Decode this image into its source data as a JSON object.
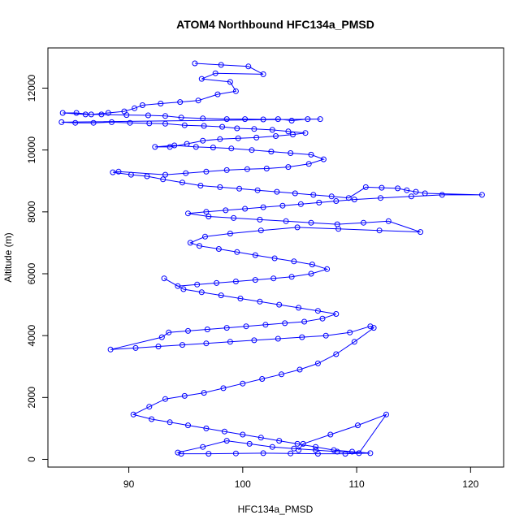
{
  "chart_data": {
    "type": "scatter",
    "title": "ATOM4 Northbound HFC134a_PMSD",
    "xlabel": "HFC134a_PMSD",
    "ylabel": "Altitude (m)",
    "xlim": [
      82.9,
      122.9
    ],
    "ylim": [
      -250,
      13300
    ],
    "x_ticks": [
      90,
      100,
      110,
      120
    ],
    "y_ticks": [
      0,
      2000,
      4000,
      6000,
      8000,
      10000,
      12000
    ],
    "grid": false,
    "legend": "none",
    "series": [
      {
        "connected": true,
        "marker": "open-circle",
        "points": [
          [
            95.8,
            12800
          ],
          [
            98.1,
            12750
          ],
          [
            100.5,
            12700
          ],
          [
            101.8,
            12450
          ],
          [
            97.6,
            12480
          ],
          [
            96.4,
            12300
          ],
          [
            98.9,
            12200
          ],
          [
            99.4,
            11900
          ],
          [
            97.8,
            11800
          ],
          [
            96.1,
            11600
          ],
          [
            94.5,
            11550
          ],
          [
            92.8,
            11500
          ],
          [
            91.2,
            11450
          ],
          [
            90.5,
            11350
          ],
          [
            89.6,
            11250
          ],
          [
            88.2,
            11200
          ],
          [
            86.7,
            11150
          ],
          [
            85.4,
            11200
          ],
          [
            84.2,
            11200
          ],
          [
            86.2,
            11150
          ],
          [
            87.6,
            11150
          ],
          [
            89.8,
            11130
          ],
          [
            91.7,
            11120
          ],
          [
            93.2,
            11100
          ],
          [
            94.6,
            11050
          ],
          [
            96.5,
            11020
          ],
          [
            98.6,
            11000
          ],
          [
            100.2,
            11000
          ],
          [
            101.8,
            10990
          ],
          [
            103.1,
            11000
          ],
          [
            104.3,
            10950
          ],
          [
            105.7,
            11000
          ],
          [
            106.8,
            11000
          ],
          [
            84.1,
            10900
          ],
          [
            85.3,
            10880
          ],
          [
            86.9,
            10880
          ],
          [
            88.5,
            10900
          ],
          [
            90.1,
            10880
          ],
          [
            91.8,
            10860
          ],
          [
            93.2,
            10850
          ],
          [
            94.9,
            10800
          ],
          [
            96.6,
            10780
          ],
          [
            98.2,
            10750
          ],
          [
            99.5,
            10700
          ],
          [
            101.0,
            10680
          ],
          [
            102.6,
            10650
          ],
          [
            104.0,
            10600
          ],
          [
            105.5,
            10550
          ],
          [
            104.4,
            10500
          ],
          [
            102.9,
            10450
          ],
          [
            101.2,
            10400
          ],
          [
            99.6,
            10380
          ],
          [
            98.0,
            10350
          ],
          [
            96.5,
            10300
          ],
          [
            95.1,
            10200
          ],
          [
            93.6,
            10100
          ],
          [
            92.3,
            10100
          ],
          [
            94.0,
            10150
          ],
          [
            95.9,
            10100
          ],
          [
            97.4,
            10080
          ],
          [
            99.0,
            10050
          ],
          [
            100.8,
            10000
          ],
          [
            102.5,
            9950
          ],
          [
            104.2,
            9900
          ],
          [
            106.0,
            9850
          ],
          [
            107.1,
            9700
          ],
          [
            105.8,
            9550
          ],
          [
            104.0,
            9450
          ],
          [
            102.1,
            9400
          ],
          [
            100.4,
            9380
          ],
          [
            98.6,
            9350
          ],
          [
            96.8,
            9300
          ],
          [
            95.0,
            9250
          ],
          [
            93.2,
            9200
          ],
          [
            89.1,
            9300
          ],
          [
            88.6,
            9280
          ],
          [
            90.2,
            9200
          ],
          [
            91.6,
            9150
          ],
          [
            93.0,
            9050
          ],
          [
            94.7,
            8950
          ],
          [
            96.3,
            8850
          ],
          [
            98.0,
            8800
          ],
          [
            99.7,
            8750
          ],
          [
            101.3,
            8700
          ],
          [
            103.0,
            8650
          ],
          [
            104.6,
            8600
          ],
          [
            106.2,
            8550
          ],
          [
            107.8,
            8500
          ],
          [
            109.3,
            8450
          ],
          [
            110.8,
            8800
          ],
          [
            112.2,
            8780
          ],
          [
            113.6,
            8760
          ],
          [
            114.4,
            8700
          ],
          [
            115.2,
            8650
          ],
          [
            116.0,
            8600
          ],
          [
            121.0,
            8550
          ],
          [
            117.5,
            8550
          ],
          [
            114.8,
            8500
          ],
          [
            112.1,
            8450
          ],
          [
            109.8,
            8400
          ],
          [
            108.2,
            8350
          ],
          [
            106.7,
            8300
          ],
          [
            105.1,
            8250
          ],
          [
            103.5,
            8200
          ],
          [
            101.8,
            8150
          ],
          [
            100.2,
            8100
          ],
          [
            98.5,
            8050
          ],
          [
            96.8,
            8000
          ],
          [
            95.2,
            7950
          ],
          [
            97.0,
            7850
          ],
          [
            99.2,
            7800
          ],
          [
            101.5,
            7750
          ],
          [
            103.8,
            7700
          ],
          [
            106.0,
            7650
          ],
          [
            108.3,
            7600
          ],
          [
            110.6,
            7650
          ],
          [
            112.8,
            7700
          ],
          [
            115.6,
            7350
          ],
          [
            112.0,
            7400
          ],
          [
            108.4,
            7450
          ],
          [
            104.8,
            7500
          ],
          [
            101.6,
            7400
          ],
          [
            98.9,
            7300
          ],
          [
            96.7,
            7200
          ],
          [
            95.4,
            7000
          ],
          [
            96.2,
            6900
          ],
          [
            97.9,
            6800
          ],
          [
            99.5,
            6700
          ],
          [
            101.1,
            6600
          ],
          [
            102.8,
            6500
          ],
          [
            104.5,
            6400
          ],
          [
            106.1,
            6300
          ],
          [
            107.4,
            6150
          ],
          [
            106.0,
            6000
          ],
          [
            104.3,
            5900
          ],
          [
            102.7,
            5850
          ],
          [
            101.1,
            5800
          ],
          [
            99.4,
            5750
          ],
          [
            97.7,
            5700
          ],
          [
            96.0,
            5650
          ],
          [
            94.3,
            5600
          ],
          [
            93.1,
            5850
          ],
          [
            94.8,
            5500
          ],
          [
            96.4,
            5400
          ],
          [
            98.1,
            5300
          ],
          [
            99.8,
            5200
          ],
          [
            101.5,
            5100
          ],
          [
            103.2,
            5000
          ],
          [
            104.9,
            4900
          ],
          [
            106.6,
            4800
          ],
          [
            108.2,
            4700
          ],
          [
            107.0,
            4550
          ],
          [
            105.4,
            4450
          ],
          [
            103.7,
            4400
          ],
          [
            102.0,
            4350
          ],
          [
            100.3,
            4300
          ],
          [
            98.6,
            4250
          ],
          [
            96.9,
            4200
          ],
          [
            95.2,
            4150
          ],
          [
            93.5,
            4100
          ],
          [
            92.9,
            3950
          ],
          [
            88.4,
            3550
          ],
          [
            90.6,
            3600
          ],
          [
            92.6,
            3650
          ],
          [
            94.7,
            3700
          ],
          [
            96.8,
            3750
          ],
          [
            98.9,
            3800
          ],
          [
            101.0,
            3850
          ],
          [
            103.1,
            3900
          ],
          [
            105.2,
            3950
          ],
          [
            107.3,
            4000
          ],
          [
            109.4,
            4100
          ],
          [
            111.2,
            4300
          ],
          [
            111.5,
            4250
          ],
          [
            109.8,
            3800
          ],
          [
            108.2,
            3400
          ],
          [
            106.6,
            3100
          ],
          [
            105.0,
            2900
          ],
          [
            103.4,
            2750
          ],
          [
            101.7,
            2600
          ],
          [
            100.0,
            2450
          ],
          [
            98.3,
            2300
          ],
          [
            96.6,
            2150
          ],
          [
            94.9,
            2050
          ],
          [
            93.2,
            1950
          ],
          [
            91.8,
            1700
          ],
          [
            90.4,
            1450
          ],
          [
            92.0,
            1300
          ],
          [
            93.6,
            1200
          ],
          [
            95.2,
            1100
          ],
          [
            96.8,
            1000
          ],
          [
            98.4,
            900
          ],
          [
            100.0,
            800
          ],
          [
            101.6,
            700
          ],
          [
            103.2,
            600
          ],
          [
            104.8,
            500
          ],
          [
            106.4,
            400
          ],
          [
            108.0,
            300
          ],
          [
            109.6,
            250
          ],
          [
            111.2,
            200
          ],
          [
            109.0,
            180
          ],
          [
            106.6,
            180
          ],
          [
            104.2,
            190
          ],
          [
            101.8,
            200
          ],
          [
            99.4,
            190
          ],
          [
            97.0,
            180
          ],
          [
            94.6,
            180
          ],
          [
            94.3,
            220
          ],
          [
            96.5,
            400
          ],
          [
            98.6,
            600
          ],
          [
            100.6,
            500
          ],
          [
            102.6,
            400
          ],
          [
            104.5,
            350
          ],
          [
            106.4,
            300
          ],
          [
            108.3,
            250
          ],
          [
            110.2,
            200
          ],
          [
            112.6,
            1450
          ],
          [
            110.1,
            1100
          ],
          [
            107.7,
            800
          ],
          [
            105.3,
            500
          ],
          [
            104.9,
            300
          ]
        ]
      }
    ]
  }
}
